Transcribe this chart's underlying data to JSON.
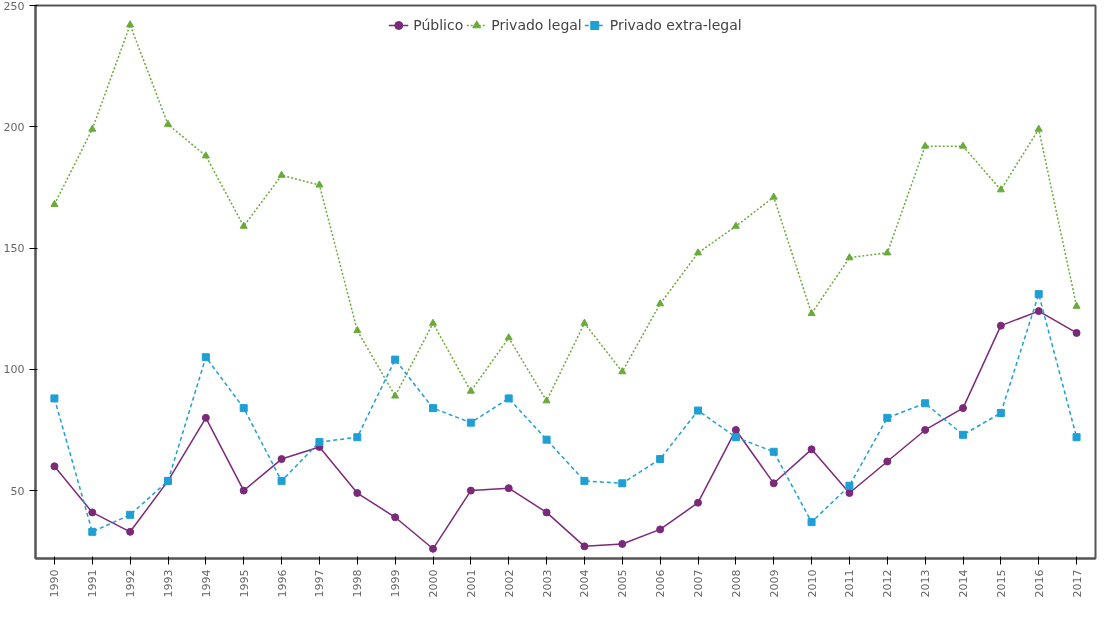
{
  "chart_data": {
    "type": "line",
    "categories": [
      "1990",
      "1991",
      "1992",
      "1993",
      "1994",
      "1995",
      "1996",
      "1997",
      "1998",
      "1999",
      "2000",
      "2001",
      "2002",
      "2003",
      "2004",
      "2005",
      "2006",
      "2007",
      "2008",
      "2009",
      "2010",
      "2011",
      "2012",
      "2013",
      "2014",
      "2015",
      "2016",
      "2017"
    ],
    "ylim": [
      22,
      250
    ],
    "yticks": [
      50,
      100,
      150,
      200,
      250
    ],
    "grid": false,
    "legend": "top",
    "series": [
      {
        "name": "Público",
        "color": "#7b2a7a",
        "marker": "circle",
        "line_style": "solid",
        "values": [
          60,
          41,
          33,
          54,
          80,
          50,
          63,
          68,
          49,
          39,
          26,
          50,
          51,
          41,
          27,
          28,
          34,
          45,
          75,
          53,
          67,
          49,
          62,
          75,
          84,
          118,
          124,
          115
        ]
      },
      {
        "name": "Privado legal",
        "color": "#6aaa3a",
        "marker": "triangle",
        "line_style": "dotted",
        "values": [
          168,
          199,
          242,
          201,
          188,
          159,
          180,
          176,
          116,
          89,
          119,
          91,
          113,
          87,
          119,
          99,
          127,
          148,
          159,
          171,
          123,
          146,
          148,
          192,
          192,
          174,
          199,
          126
        ]
      },
      {
        "name": "Privado extra-legal",
        "color": "#1f9fd4",
        "marker": "square",
        "line_style": "dashed",
        "values": [
          88,
          33,
          40,
          54,
          105,
          84,
          54,
          70,
          72,
          104,
          84,
          78,
          88,
          71,
          54,
          53,
          63,
          83,
          72,
          66,
          37,
          52,
          80,
          86,
          73,
          82,
          131,
          72
        ]
      }
    ]
  }
}
